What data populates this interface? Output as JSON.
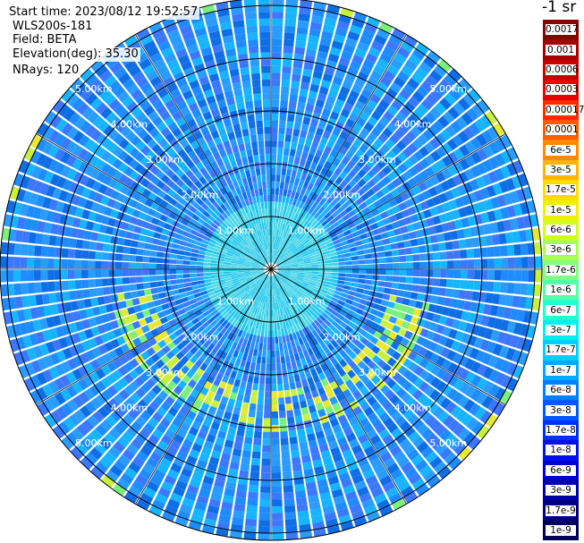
{
  "info": {
    "start_time": "Start time: 2023/08/12 19:52:57",
    "station": "WLS200s-181",
    "field": "Field: BETA",
    "elevation": "Elevation(deg): 35.30",
    "nrays": "NRays: 120"
  },
  "colorbar": {
    "unit": "-1 sr",
    "levels": [
      {
        "label": "0.0017",
        "color": "#8b0000"
      },
      {
        "label": "0.001",
        "color": "#a80000"
      },
      {
        "label": "0.0006",
        "color": "#c80000"
      },
      {
        "label": "0.0003",
        "color": "#e80000"
      },
      {
        "label": "0.00017",
        "color": "#ff2a00"
      },
      {
        "label": "0.0001",
        "color": "#ff5a00"
      },
      {
        "label": "6e-5",
        "color": "#ff8a00"
      },
      {
        "label": "3e-5",
        "color": "#ffb400"
      },
      {
        "label": "1.7e-5",
        "color": "#ffdc00"
      },
      {
        "label": "1e-5",
        "color": "#f0f000"
      },
      {
        "label": "6e-6",
        "color": "#d0ff20"
      },
      {
        "label": "3e-6",
        "color": "#a8ff50"
      },
      {
        "label": "1.7e-6",
        "color": "#80ff80"
      },
      {
        "label": "1e-6",
        "color": "#50ffa8"
      },
      {
        "label": "6e-7",
        "color": "#20ffd0"
      },
      {
        "label": "3e-7",
        "color": "#00f0f0"
      },
      {
        "label": "1.7e-7",
        "color": "#00d0ff"
      },
      {
        "label": "1e-7",
        "color": "#00a8ff"
      },
      {
        "label": "6e-8",
        "color": "#0080ff"
      },
      {
        "label": "3e-8",
        "color": "#0058ff"
      },
      {
        "label": "1.7e-8",
        "color": "#0030ff"
      },
      {
        "label": "1e-8",
        "color": "#0010f0"
      },
      {
        "label": "6e-9",
        "color": "#0000d0"
      },
      {
        "label": "3e-9",
        "color": "#0000a8"
      },
      {
        "label": "1.7e-9",
        "color": "#000080"
      },
      {
        "label": "1e-9",
        "color": "#000058"
      }
    ]
  },
  "range_rings": [
    {
      "label": "1.00km"
    },
    {
      "label": "2.00km"
    },
    {
      "label": "3.00km"
    },
    {
      "label": "4.00km"
    },
    {
      "label": "5.00km"
    }
  ],
  "palette": {
    "background_field": [
      "#1e8cff",
      "#2a9cff",
      "#17b4ff",
      "#0f6ee6",
      "#3c78ff",
      "#22c8f0",
      "#49d6e6"
    ],
    "aerosol_layer": [
      "#7af07a",
      "#c8f03c",
      "#e8e832"
    ],
    "ring_color": "#000000",
    "label_color": "#ffffff"
  }
}
